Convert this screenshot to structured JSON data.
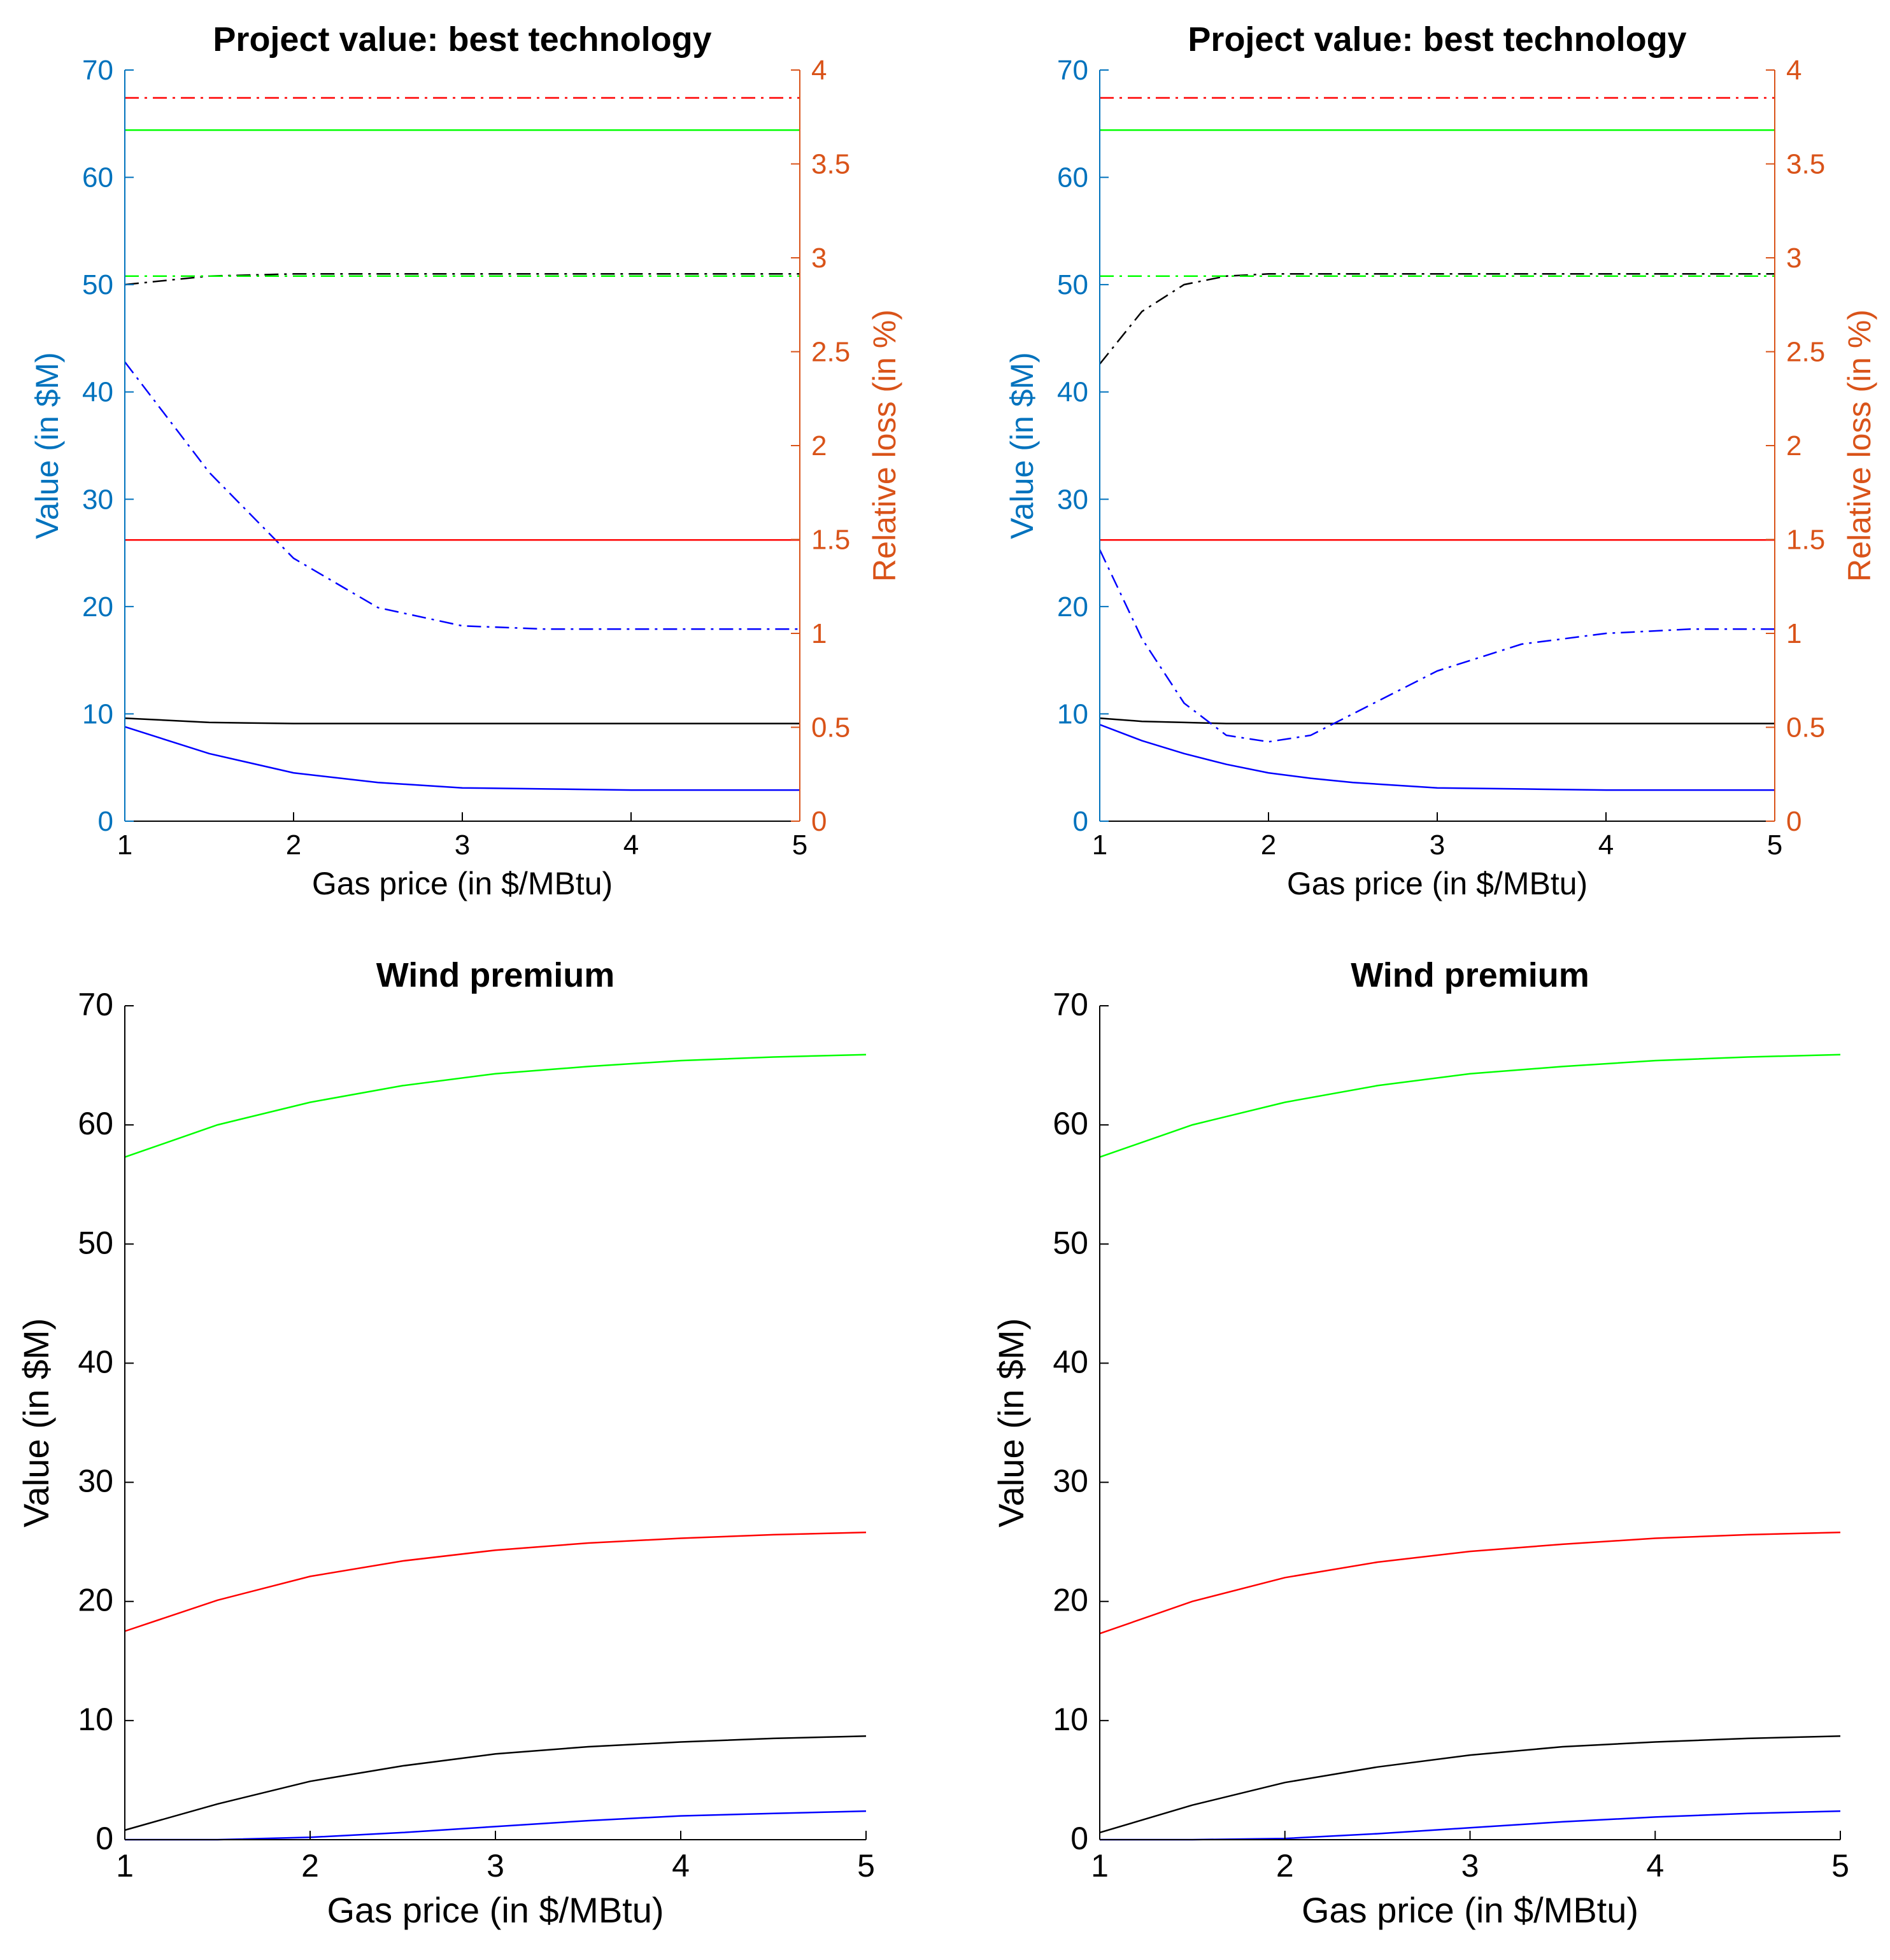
{
  "colors": {
    "left_axis": "#0072BD",
    "right_axis": "#D95319",
    "black": "#000000",
    "blue": "#0000FF",
    "green": "#00FF00",
    "red": "#FF0000"
  },
  "chart_data": [
    {
      "type": "line",
      "title": "Project value: best technology",
      "xlabel": "Gas price (in $/MBtu)",
      "ylabel": "Value (in $M)",
      "ylabel_right": "Relative loss (in %)",
      "xlim": [
        1,
        5
      ],
      "ylim": [
        0,
        70
      ],
      "ylim_right": [
        0,
        4
      ],
      "xticks": [
        "1",
        "2",
        "3",
        "4",
        "5"
      ],
      "yticks": [
        "0",
        "10",
        "20",
        "30",
        "40",
        "50",
        "60",
        "70"
      ],
      "yticks_right": [
        "0",
        "0.5",
        "1",
        "1.5",
        "2",
        "2.5",
        "3",
        "3.5",
        "4"
      ],
      "grid": false,
      "x": [
        1,
        1.5,
        2,
        2.5,
        3,
        3.5,
        4,
        4.5,
        5
      ],
      "series": [
        {
          "axis": "left",
          "color": "#000000",
          "dash": "solid",
          "values": [
            9.6,
            9.2,
            9.1,
            9.1,
            9.1,
            9.1,
            9.1,
            9.1,
            9.1
          ]
        },
        {
          "axis": "left",
          "color": "#0000FF",
          "dash": "solid",
          "values": [
            8.8,
            6.3,
            4.5,
            3.6,
            3.1,
            3.0,
            2.9,
            2.9,
            2.9
          ]
        },
        {
          "axis": "left",
          "color": "#000000",
          "dash": "dashdot",
          "values": [
            50.0,
            50.8,
            51.0,
            51.0,
            51.0,
            51.0,
            51.0,
            51.0,
            51.0
          ]
        },
        {
          "axis": "left",
          "color": "#0000FF",
          "dash": "dashdot",
          "values": [
            42.8,
            32.5,
            24.5,
            19.9,
            18.2,
            17.9,
            17.9,
            17.9,
            17.9
          ]
        },
        {
          "axis": "left",
          "color": "#00FF00",
          "dash": "solid",
          "values": [
            64.4,
            64.4,
            64.4,
            64.4,
            64.4,
            64.4,
            64.4,
            64.4,
            64.4
          ]
        },
        {
          "axis": "left",
          "color": "#00FF00",
          "dash": "dashdot",
          "values": [
            50.8,
            50.8,
            50.8,
            50.8,
            50.8,
            50.8,
            50.8,
            50.8,
            50.8
          ]
        },
        {
          "axis": "left",
          "color": "#FF0000",
          "dash": "solid",
          "values": [
            26.2,
            26.2,
            26.2,
            26.2,
            26.2,
            26.2,
            26.2,
            26.2,
            26.2
          ]
        },
        {
          "axis": "left",
          "color": "#FF0000",
          "dash": "dashdot",
          "values": [
            67.4,
            67.4,
            67.4,
            67.4,
            67.4,
            67.4,
            67.4,
            67.4,
            67.4
          ]
        }
      ]
    },
    {
      "type": "line",
      "title": "Project value: best technology",
      "xlabel": "Gas price (in $/MBtu)",
      "ylabel": "Value (in $M)",
      "ylabel_right": "Relative loss (in %)",
      "xlim": [
        1,
        5
      ],
      "ylim": [
        0,
        70
      ],
      "ylim_right": [
        0,
        4
      ],
      "xticks": [
        "1",
        "2",
        "3",
        "4",
        "5"
      ],
      "yticks": [
        "0",
        "10",
        "20",
        "30",
        "40",
        "50",
        "60",
        "70"
      ],
      "yticks_right": [
        "0",
        "0.5",
        "1",
        "1.5",
        "2",
        "2.5",
        "3",
        "3.5",
        "4"
      ],
      "grid": false,
      "x": [
        1,
        1.25,
        1.5,
        1.75,
        2,
        2.25,
        2.5,
        3,
        3.5,
        4,
        4.5,
        5
      ],
      "series": [
        {
          "axis": "left",
          "color": "#000000",
          "dash": "solid",
          "values": [
            9.6,
            9.3,
            9.2,
            9.1,
            9.1,
            9.1,
            9.1,
            9.1,
            9.1,
            9.1,
            9.1,
            9.1
          ]
        },
        {
          "axis": "left",
          "color": "#0000FF",
          "dash": "solid",
          "values": [
            9.0,
            7.5,
            6.3,
            5.3,
            4.5,
            4.0,
            3.6,
            3.1,
            3.0,
            2.9,
            2.9,
            2.9
          ]
        },
        {
          "axis": "left",
          "color": "#000000",
          "dash": "dashdot",
          "values": [
            42.6,
            47.5,
            50.0,
            50.8,
            51.0,
            51.0,
            51.0,
            51.0,
            51.0,
            51.0,
            51.0,
            51.0
          ]
        },
        {
          "axis": "left",
          "color": "#0000FF",
          "dash": "dashdot",
          "values": [
            25.3,
            17.0,
            11.0,
            8.0,
            7.4,
            8.0,
            10.0,
            14.0,
            16.5,
            17.5,
            17.9,
            17.9
          ]
        },
        {
          "axis": "left",
          "color": "#00FF00",
          "dash": "solid",
          "values": [
            64.4,
            64.4,
            64.4,
            64.4,
            64.4,
            64.4,
            64.4,
            64.4,
            64.4,
            64.4,
            64.4,
            64.4
          ]
        },
        {
          "axis": "left",
          "color": "#00FF00",
          "dash": "dashdot",
          "values": [
            50.8,
            50.8,
            50.8,
            50.8,
            50.8,
            50.8,
            50.8,
            50.8,
            50.8,
            50.8,
            50.8,
            50.8
          ]
        },
        {
          "axis": "left",
          "color": "#FF0000",
          "dash": "solid",
          "values": [
            26.2,
            26.2,
            26.2,
            26.2,
            26.2,
            26.2,
            26.2,
            26.2,
            26.2,
            26.2,
            26.2,
            26.2
          ]
        },
        {
          "axis": "left",
          "color": "#FF0000",
          "dash": "dashdot",
          "values": [
            67.4,
            67.4,
            67.4,
            67.4,
            67.4,
            67.4,
            67.4,
            67.4,
            67.4,
            67.4,
            67.4,
            67.4
          ]
        }
      ]
    },
    {
      "type": "line",
      "title": "Wind premium",
      "xlabel": "Gas price (in $/MBtu)",
      "ylabel": "Value (in $M)",
      "xlim": [
        1,
        5
      ],
      "ylim": [
        0,
        70
      ],
      "xticks": [
        "1",
        "2",
        "3",
        "4",
        "5"
      ],
      "yticks": [
        "0",
        "10",
        "20",
        "30",
        "40",
        "50",
        "60",
        "70"
      ],
      "grid": false,
      "x": [
        1,
        1.5,
        2,
        2.5,
        3,
        3.5,
        4,
        4.5,
        5
      ],
      "series": [
        {
          "color": "#00FF00",
          "dash": "solid",
          "values": [
            57.3,
            60.0,
            61.9,
            63.3,
            64.3,
            64.9,
            65.4,
            65.7,
            65.9
          ]
        },
        {
          "color": "#FF0000",
          "dash": "solid",
          "values": [
            17.5,
            20.1,
            22.1,
            23.4,
            24.3,
            24.9,
            25.3,
            25.6,
            25.8
          ]
        },
        {
          "color": "#000000",
          "dash": "solid",
          "values": [
            0.8,
            3.0,
            4.9,
            6.2,
            7.2,
            7.8,
            8.2,
            8.5,
            8.7
          ]
        },
        {
          "color": "#0000FF",
          "dash": "solid",
          "values": [
            0.0,
            0.0,
            0.2,
            0.6,
            1.1,
            1.6,
            2.0,
            2.2,
            2.4
          ]
        }
      ]
    },
    {
      "type": "line",
      "title": "Wind premium",
      "xlabel": "Gas price (in $/MBtu)",
      "ylabel": "Value (in $M)",
      "xlim": [
        1,
        5
      ],
      "ylim": [
        0,
        70
      ],
      "xticks": [
        "1",
        "2",
        "3",
        "4",
        "5"
      ],
      "yticks": [
        "0",
        "10",
        "20",
        "30",
        "40",
        "50",
        "60",
        "70"
      ],
      "grid": false,
      "x": [
        1,
        1.5,
        2,
        2.5,
        3,
        3.5,
        4,
        4.5,
        5
      ],
      "series": [
        {
          "color": "#00FF00",
          "dash": "solid",
          "values": [
            57.3,
            60.0,
            61.9,
            63.3,
            64.3,
            64.9,
            65.4,
            65.7,
            65.9
          ]
        },
        {
          "color": "#FF0000",
          "dash": "solid",
          "values": [
            17.3,
            20.0,
            22.0,
            23.3,
            24.2,
            24.8,
            25.3,
            25.6,
            25.8
          ]
        },
        {
          "color": "#000000",
          "dash": "solid",
          "values": [
            0.6,
            2.9,
            4.8,
            6.1,
            7.1,
            7.8,
            8.2,
            8.5,
            8.7
          ]
        },
        {
          "color": "#0000FF",
          "dash": "solid",
          "values": [
            0.0,
            0.0,
            0.1,
            0.5,
            1.0,
            1.5,
            1.9,
            2.2,
            2.4
          ]
        }
      ]
    }
  ]
}
